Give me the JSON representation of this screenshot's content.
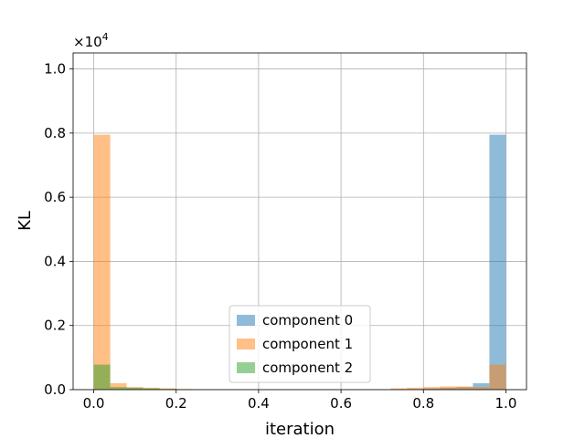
{
  "chart_data": {
    "type": "bar",
    "subtype": "histogram",
    "xlabel": "iteration",
    "ylabel": "KL",
    "offset_multiplier": "×10",
    "offset_exponent": "4",
    "xlim": [
      -0.05,
      1.05
    ],
    "ylim": [
      0,
      10500
    ],
    "x_ticks": [
      0.0,
      0.2,
      0.4,
      0.6,
      0.8,
      1.0
    ],
    "x_tick_labels": [
      "0.0",
      "0.2",
      "0.4",
      "0.6",
      "0.8",
      "1.0"
    ],
    "y_ticks": [
      0,
      2000,
      4000,
      6000,
      8000,
      10000
    ],
    "y_tick_labels": [
      "0.0",
      "0.2",
      "0.4",
      "0.6",
      "0.8",
      "1.0"
    ],
    "grid": true,
    "legend_position": "bottom-center",
    "bin_edges": [
      0.0,
      0.04,
      0.08,
      0.12,
      0.16,
      0.2,
      0.24,
      0.28,
      0.32,
      0.36,
      0.4,
      0.44,
      0.48,
      0.52,
      0.56,
      0.6,
      0.64,
      0.68,
      0.72,
      0.76,
      0.8,
      0.84,
      0.88,
      0.92,
      0.96,
      1.0
    ],
    "series": [
      {
        "name": "component 0",
        "color": "#1f77b4",
        "values": [
          0,
          0,
          0,
          0,
          0,
          0,
          0,
          0,
          0,
          0,
          0,
          0,
          0,
          0,
          0,
          0,
          0,
          0,
          0,
          20,
          40,
          60,
          80,
          200,
          7950
        ]
      },
      {
        "name": "component 1",
        "color": "#ff7f0e",
        "values": [
          7950,
          200,
          80,
          60,
          40,
          20,
          0,
          0,
          0,
          0,
          0,
          0,
          0,
          0,
          0,
          0,
          0,
          0,
          40,
          60,
          80,
          100,
          100,
          80,
          780
        ]
      },
      {
        "name": "component 2",
        "color": "#2ca02c",
        "values": [
          780,
          80,
          60,
          40,
          20,
          0,
          0,
          0,
          0,
          0,
          0,
          0,
          0,
          0,
          0,
          0,
          0,
          0,
          0,
          0,
          0,
          0,
          0,
          0,
          0
        ]
      }
    ]
  }
}
